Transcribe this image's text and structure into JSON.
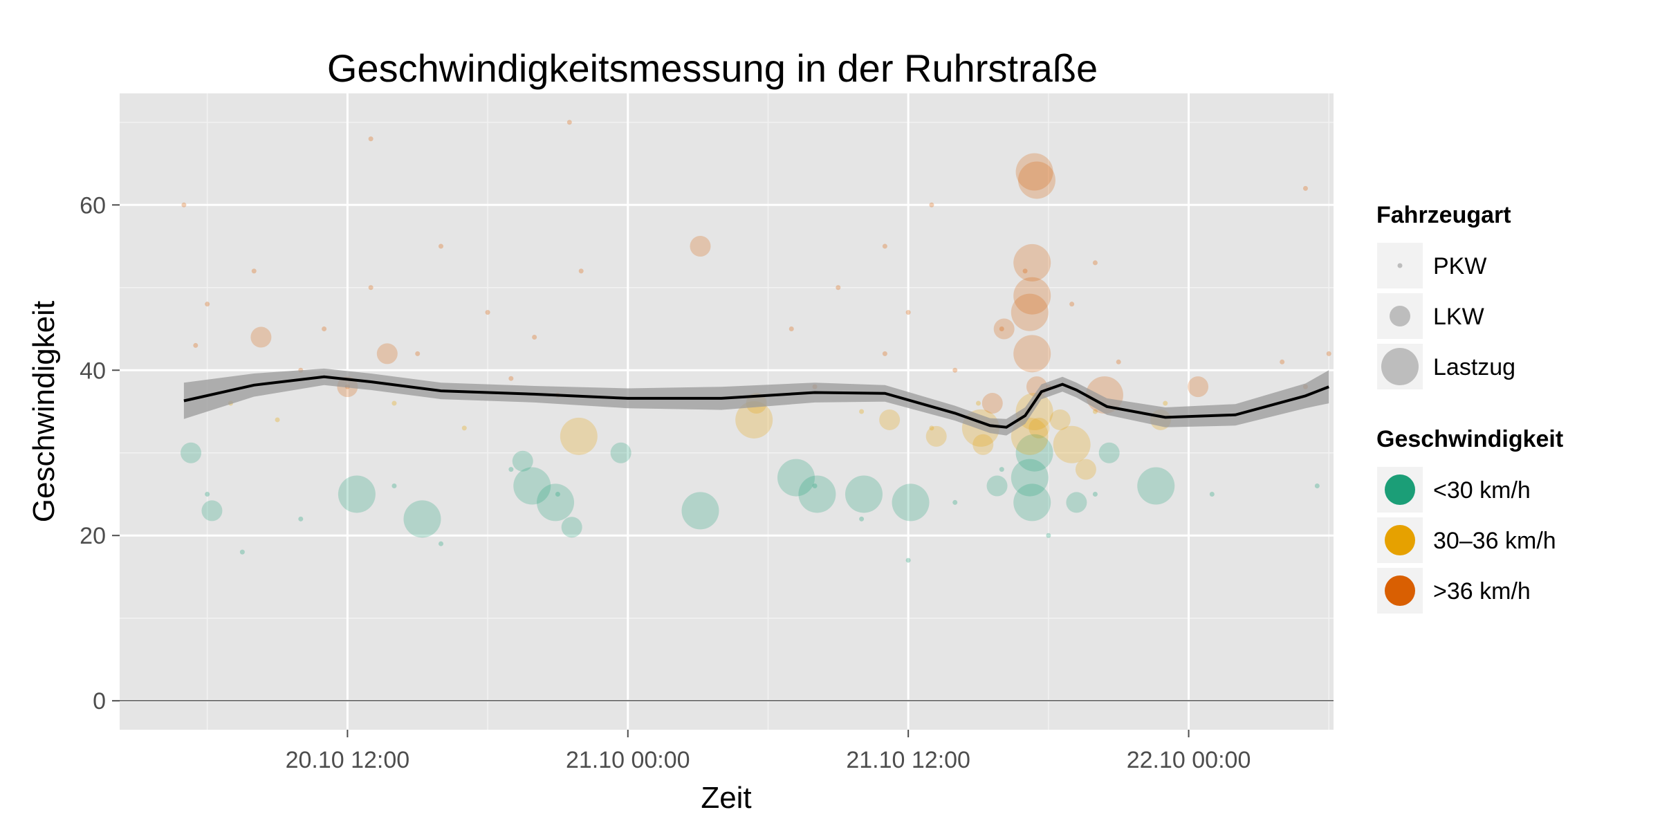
{
  "chart_data": {
    "type": "scatter",
    "title": "Geschwindigkeitsmessung in der Ruhrstraße",
    "xlabel": "Zeit",
    "ylabel": "Geschwindigkeit",
    "x_unit": "hours since 20.10 00:00",
    "xlim": [
      2.25,
      54.2
    ],
    "ylim": [
      -3.5,
      73.5
    ],
    "x_ticks": [
      {
        "value": 12,
        "label": "20.10 12:00"
      },
      {
        "value": 24,
        "label": "21.10 00:00"
      },
      {
        "value": 36,
        "label": "21.10 12:00"
      },
      {
        "value": 48,
        "label": "22.10 00:00"
      }
    ],
    "y_ticks": [
      {
        "value": 0,
        "label": "0"
      },
      {
        "value": 20,
        "label": "20"
      },
      {
        "value": 40,
        "label": "40"
      },
      {
        "value": 60,
        "label": "60"
      }
    ],
    "grid": true,
    "legend_position": "right",
    "legends": [
      {
        "title": "Fahrzeugart",
        "encoding": "size",
        "items": [
          {
            "label": "PKW",
            "size": "small"
          },
          {
            "label": "LKW",
            "size": "medium"
          },
          {
            "label": "Lastzug",
            "size": "large"
          }
        ]
      },
      {
        "title": "Geschwindigkeit",
        "encoding": "color",
        "items": [
          {
            "label": "<30 km/h",
            "color": "#1b9e77"
          },
          {
            "label": "30–36 km/h",
            "color": "#e6a100"
          },
          {
            "label": ">36 km/h",
            "color": "#d95f02"
          }
        ]
      }
    ],
    "colors": {
      "slow": "#1b9e77",
      "medium": "#e6a100",
      "fast": "#d95f02",
      "panel": "#e5e5e5",
      "smooth": "#000000",
      "band": "#999999"
    },
    "sample_pkw_points": {
      "note": "PKW points are densely distributed; listed as [x, speed] samples",
      "points": [
        [
          5.5,
          43
        ],
        [
          6,
          48
        ],
        [
          7,
          36
        ],
        [
          8,
          52
        ],
        [
          9,
          34
        ],
        [
          10,
          40
        ],
        [
          11,
          45
        ],
        [
          12,
          38
        ],
        [
          13,
          50
        ],
        [
          14,
          36
        ],
        [
          15,
          42
        ],
        [
          16,
          55
        ],
        [
          17,
          33
        ],
        [
          18,
          47
        ],
        [
          19,
          39
        ],
        [
          20,
          44
        ],
        [
          21,
          37
        ],
        [
          22,
          52
        ],
        [
          6,
          25
        ],
        [
          7.5,
          18
        ],
        [
          10,
          22
        ],
        [
          14,
          26
        ],
        [
          16,
          19
        ],
        [
          19,
          28
        ],
        [
          21,
          25
        ],
        [
          5,
          60
        ],
        [
          13,
          68
        ],
        [
          21.5,
          70
        ],
        [
          31,
          45
        ],
        [
          32,
          38
        ],
        [
          33,
          50
        ],
        [
          34,
          35
        ],
        [
          35,
          42
        ],
        [
          36,
          47
        ],
        [
          37,
          33
        ],
        [
          38,
          40
        ],
        [
          39,
          36
        ],
        [
          40,
          45
        ],
        [
          41,
          52
        ],
        [
          42,
          38
        ],
        [
          43,
          48
        ],
        [
          44,
          35
        ],
        [
          45,
          41
        ],
        [
          32,
          26
        ],
        [
          34,
          22
        ],
        [
          36,
          17
        ],
        [
          38,
          24
        ],
        [
          40,
          28
        ],
        [
          42,
          20
        ],
        [
          44,
          25
        ],
        [
          47,
          36
        ],
        [
          52,
          41
        ],
        [
          53,
          38
        ],
        [
          54,
          42
        ],
        [
          53.5,
          26
        ],
        [
          53,
          62
        ],
        [
          44,
          53
        ],
        [
          35,
          55
        ],
        [
          37,
          60
        ],
        [
          49,
          25
        ]
      ]
    },
    "lkw_points": [
      [
        5.3,
        30,
        "slow"
      ],
      [
        6.2,
        23,
        "slow"
      ],
      [
        8.3,
        44,
        "fast"
      ],
      [
        12,
        38,
        "fast"
      ],
      [
        13.7,
        42,
        "fast"
      ],
      [
        19.5,
        29,
        "slow"
      ],
      [
        21.6,
        21,
        "slow"
      ],
      [
        23.7,
        30,
        "slow"
      ],
      [
        27.1,
        55,
        "fast"
      ],
      [
        29.5,
        36,
        "medium"
      ],
      [
        35.2,
        34,
        "medium"
      ],
      [
        37.2,
        32,
        "medium"
      ],
      [
        39.2,
        31,
        "medium"
      ],
      [
        41.6,
        33,
        "medium"
      ],
      [
        43.2,
        24,
        "slow"
      ],
      [
        43.6,
        28,
        "medium"
      ],
      [
        44.6,
        30,
        "slow"
      ],
      [
        46.8,
        34,
        "medium"
      ],
      [
        48.4,
        38,
        "fast"
      ],
      [
        39.6,
        36,
        "fast"
      ],
      [
        40.1,
        45,
        "fast"
      ],
      [
        39.8,
        26,
        "slow"
      ],
      [
        41.5,
        38,
        "fast"
      ],
      [
        42.5,
        34,
        "medium"
      ]
    ],
    "lastzug_points": [
      [
        12.4,
        25,
        "slow"
      ],
      [
        15.2,
        22,
        "slow"
      ],
      [
        19.9,
        26,
        "slow"
      ],
      [
        20.9,
        24,
        "slow"
      ],
      [
        21.9,
        32,
        "medium"
      ],
      [
        27.1,
        23,
        "slow"
      ],
      [
        29.4,
        34,
        "medium"
      ],
      [
        31.2,
        27,
        "slow"
      ],
      [
        32.1,
        25,
        "slow"
      ],
      [
        34.1,
        25,
        "slow"
      ],
      [
        36.1,
        24,
        "slow"
      ],
      [
        39.1,
        33,
        "medium"
      ],
      [
        41.3,
        24,
        "slow"
      ],
      [
        41.2,
        27,
        "slow"
      ],
      [
        41.4,
        30,
        "slow"
      ],
      [
        41.2,
        32,
        "medium"
      ],
      [
        41.4,
        35,
        "medium"
      ],
      [
        41.3,
        42,
        "fast"
      ],
      [
        41.2,
        47,
        "fast"
      ],
      [
        41.3,
        49,
        "fast"
      ],
      [
        41.3,
        53,
        "fast"
      ],
      [
        41.5,
        63,
        "fast"
      ],
      [
        41.4,
        64,
        "fast"
      ],
      [
        43,
        31,
        "medium"
      ],
      [
        44.4,
        37,
        "fast"
      ],
      [
        46.6,
        26,
        "slow"
      ]
    ],
    "smooth_line": {
      "x": [
        5,
        8,
        11,
        13,
        16,
        20,
        24,
        28,
        32,
        35,
        38,
        39.5,
        40.2,
        41,
        41.7,
        42.6,
        43.2,
        44.5,
        47,
        50,
        53,
        54
      ],
      "y": [
        36.3,
        38.2,
        39.2,
        38.6,
        37.5,
        37.1,
        36.6,
        36.6,
        37.3,
        37.2,
        34.8,
        33.3,
        33.1,
        34.5,
        37.4,
        38.3,
        37.6,
        35.6,
        34.3,
        34.6,
        36.9,
        38.0
      ],
      "band_halfwidth": [
        2.2,
        1.4,
        1.0,
        1.0,
        1.0,
        1.0,
        1.2,
        1.4,
        1.2,
        1.0,
        0.9,
        0.9,
        1.0,
        1.0,
        0.9,
        0.9,
        0.9,
        1.0,
        1.2,
        1.3,
        1.5,
        2.0
      ]
    }
  }
}
